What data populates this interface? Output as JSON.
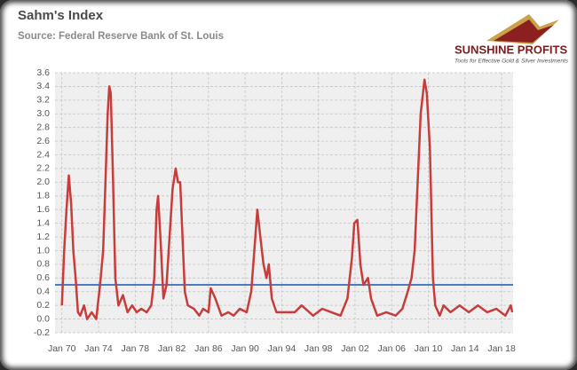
{
  "chart_data": {
    "type": "line",
    "title": "Sahm's Index",
    "subtitle": "Source: Federal Reserve Bank of St. Louis",
    "brand": "SUNSHINE PROFITS",
    "brand_tagline": "Tools for Effective Gold & Silver Investments",
    "x": [
      "1970-01",
      "1970-04",
      "1970-07",
      "1970-10",
      "1971-01",
      "1971-04",
      "1971-07",
      "1971-10",
      "1972-01",
      "1972-06",
      "1972-10",
      "1973-04",
      "1973-10",
      "1974-03",
      "1974-07",
      "1974-10",
      "1975-01",
      "1975-03",
      "1975-05",
      "1975-08",
      "1975-11",
      "1976-03",
      "1976-09",
      "1977-03",
      "1977-09",
      "1978-03",
      "1978-09",
      "1979-04",
      "1979-10",
      "1980-02",
      "1980-05",
      "1980-07",
      "1980-10",
      "1981-02",
      "1981-06",
      "1981-10",
      "1982-02",
      "1982-06",
      "1982-09",
      "1982-12",
      "1983-03",
      "1983-06",
      "1983-10",
      "1984-06",
      "1985-01",
      "1985-06",
      "1986-01",
      "1986-04",
      "1986-10",
      "1987-06",
      "1988-03",
      "1988-10",
      "1989-06",
      "1990-03",
      "1990-09",
      "1991-01",
      "1991-05",
      "1991-09",
      "1992-01",
      "1992-05",
      "1992-08",
      "1992-12",
      "1993-06",
      "1994-06",
      "1995-06",
      "1996-03",
      "1997-06",
      "1998-06",
      "1999-06",
      "2000-06",
      "2001-03",
      "2001-09",
      "2001-12",
      "2002-04",
      "2002-08",
      "2002-12",
      "2003-06",
      "2003-10",
      "2004-06",
      "2005-06",
      "2006-06",
      "2007-03",
      "2007-10",
      "2008-03",
      "2008-07",
      "2008-11",
      "2009-03",
      "2009-08",
      "2009-11",
      "2010-03",
      "2010-07",
      "2010-10",
      "2011-04",
      "2011-09",
      "2012-06",
      "2013-06",
      "2014-06",
      "2015-06",
      "2016-06",
      "2017-06",
      "2018-06",
      "2019-01",
      "2019-03"
    ],
    "series": [
      {
        "name": "Sahm's Index",
        "color": "#c83c3c",
        "values": [
          0.2,
          1.0,
          1.6,
          2.1,
          1.7,
          1.0,
          0.6,
          0.1,
          0.05,
          0.2,
          0.0,
          0.1,
          0.0,
          0.5,
          1.0,
          2.0,
          3.0,
          3.4,
          3.3,
          2.0,
          0.6,
          0.2,
          0.35,
          0.1,
          0.2,
          0.1,
          0.15,
          0.1,
          0.2,
          0.6,
          1.6,
          1.8,
          1.2,
          0.3,
          0.5,
          1.2,
          1.9,
          2.2,
          2.0,
          2.0,
          1.2,
          0.4,
          0.2,
          0.15,
          0.05,
          0.15,
          0.1,
          0.45,
          0.3,
          0.05,
          0.1,
          0.05,
          0.15,
          0.1,
          0.4,
          1.0,
          1.6,
          1.2,
          0.8,
          0.6,
          0.8,
          0.3,
          0.1,
          0.1,
          0.1,
          0.2,
          0.05,
          0.15,
          0.1,
          0.05,
          0.3,
          0.9,
          1.4,
          1.45,
          0.8,
          0.5,
          0.6,
          0.3,
          0.05,
          0.1,
          0.05,
          0.15,
          0.4,
          0.6,
          1.0,
          2.0,
          3.0,
          3.5,
          3.3,
          2.5,
          0.6,
          0.2,
          0.05,
          0.2,
          0.1,
          0.2,
          0.1,
          0.2,
          0.1,
          0.15,
          0.05,
          0.2,
          0.1
        ]
      }
    ],
    "threshold": 0.5,
    "threshold_color": "#4a7cc4",
    "xlim": [
      "1969-04",
      "2019-04"
    ],
    "xticks": [
      {
        "value": "1970-01",
        "label": "Jan 70"
      },
      {
        "value": "1974-01",
        "label": "Jan 74"
      },
      {
        "value": "1978-01",
        "label": "Jan 78"
      },
      {
        "value": "1982-01",
        "label": "Jan 82"
      },
      {
        "value": "1986-01",
        "label": "Jan 86"
      },
      {
        "value": "1990-01",
        "label": "Jan 90"
      },
      {
        "value": "1994-01",
        "label": "Jan 94"
      },
      {
        "value": "1998-01",
        "label": "Jan 98"
      },
      {
        "value": "2002-01",
        "label": "Jan 02"
      },
      {
        "value": "2006-01",
        "label": "Jan 06"
      },
      {
        "value": "2010-01",
        "label": "Jan 10"
      },
      {
        "value": "2014-01",
        "label": "Jan 14"
      },
      {
        "value": "2018-01",
        "label": "Jan 18"
      }
    ],
    "ylim": [
      -0.2,
      3.6
    ],
    "yticks": [
      -0.2,
      {
        "value": 0,
        "label": "0.0"
      },
      0.2,
      0.4,
      0.6,
      0.8,
      {
        "value": 1,
        "label": "1.0"
      },
      1.2,
      1.4,
      1.6,
      1.8,
      {
        "value": 2,
        "label": "2.0"
      },
      2.2,
      2.4,
      2.6,
      2.8,
      {
        "value": 3,
        "label": "3.0"
      },
      3.2,
      3.4,
      3.6
    ],
    "grid": true
  }
}
